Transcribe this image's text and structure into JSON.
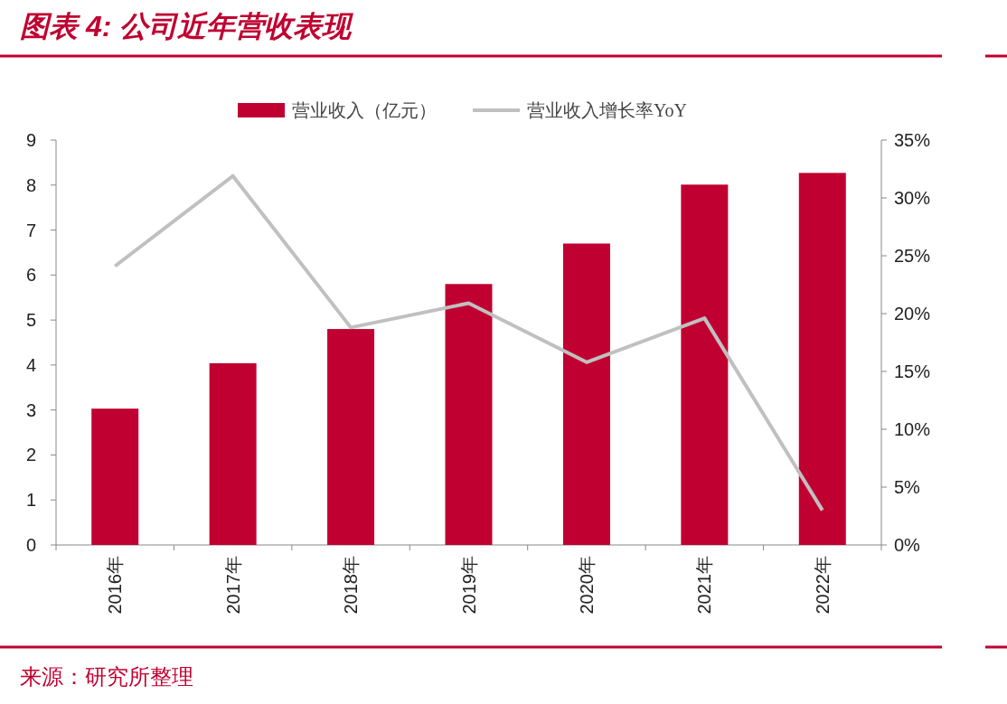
{
  "chart_data": {
    "type": "bar",
    "title": "图表 4:  公司近年营收表现",
    "categories": [
      "2016年",
      "2017年",
      "2018年",
      "2019年",
      "2020年",
      "2021年",
      "2022年"
    ],
    "series": [
      {
        "name": "营业收入（亿元）",
        "color": "#c00030",
        "values": [
          3.03,
          4.04,
          4.8,
          5.8,
          6.7,
          8.01,
          8.27
        ]
      },
      {
        "name": "营业收入增长率YoY",
        "type": "line",
        "axis": "y2",
        "color": "#c0c0c0",
        "values": [
          24.1,
          31.9,
          18.8,
          20.9,
          15.8,
          19.6,
          3.0
        ]
      }
    ],
    "ylim": [
      0,
      9
    ],
    "yticks": [
      0,
      1,
      2,
      3,
      4,
      5,
      6,
      7,
      8,
      9
    ],
    "y2lim": [
      0,
      35
    ],
    "y2ticks": [
      {
        "value": 0,
        "label": "0%"
      },
      {
        "value": 5,
        "label": "5%"
      },
      {
        "value": 10,
        "label": "10%"
      },
      {
        "value": 15,
        "label": "15%"
      },
      {
        "value": 20,
        "label": "20%"
      },
      {
        "value": 25,
        "label": "25%"
      },
      {
        "value": 30,
        "label": "30%"
      },
      {
        "value": 35,
        "label": "35%"
      }
    ],
    "legend": "top",
    "grid": false,
    "annotations": [
      "来源：研究所整理"
    ]
  }
}
